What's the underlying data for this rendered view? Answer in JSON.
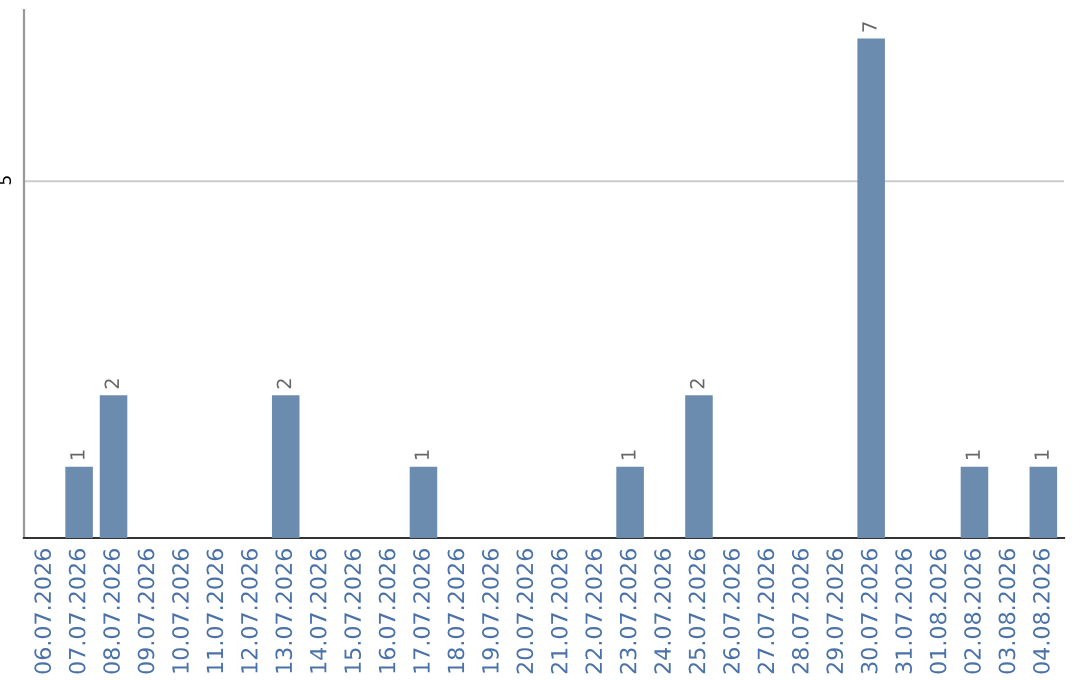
{
  "chart_data": {
    "type": "bar",
    "categories": [
      "06.07.2026",
      "07.07.2026",
      "08.07.2026",
      "09.07.2026",
      "10.07.2026",
      "11.07.2026",
      "12.07.2026",
      "13.07.2026",
      "14.07.2026",
      "15.07.2026",
      "16.07.2026",
      "17.07.2026",
      "18.07.2026",
      "19.07.2026",
      "20.07.2026",
      "21.07.2026",
      "22.07.2026",
      "23.07.2026",
      "24.07.2026",
      "25.07.2026",
      "26.07.2026",
      "27.07.2026",
      "28.07.2026",
      "29.07.2026",
      "30.07.2026",
      "31.07.2026",
      "01.08.2026",
      "02.08.2026",
      "03.08.2026",
      "04.08.2026"
    ],
    "values": [
      0,
      1,
      2,
      0,
      0,
      0,
      0,
      2,
      0,
      0,
      0,
      1,
      0,
      0,
      0,
      0,
      0,
      1,
      0,
      2,
      0,
      0,
      0,
      0,
      7,
      0,
      0,
      1,
      0,
      1
    ],
    "value_labels": [
      null,
      "1",
      "2",
      null,
      null,
      null,
      null,
      "2",
      null,
      null,
      null,
      "1",
      null,
      null,
      null,
      null,
      null,
      "1",
      null,
      "2",
      null,
      null,
      null,
      null,
      "7",
      null,
      null,
      "1",
      null,
      "1"
    ],
    "color": "#6b8cae",
    "ylim": [
      0,
      7.4
    ],
    "yticks": [
      5
    ],
    "grid": "y"
  }
}
